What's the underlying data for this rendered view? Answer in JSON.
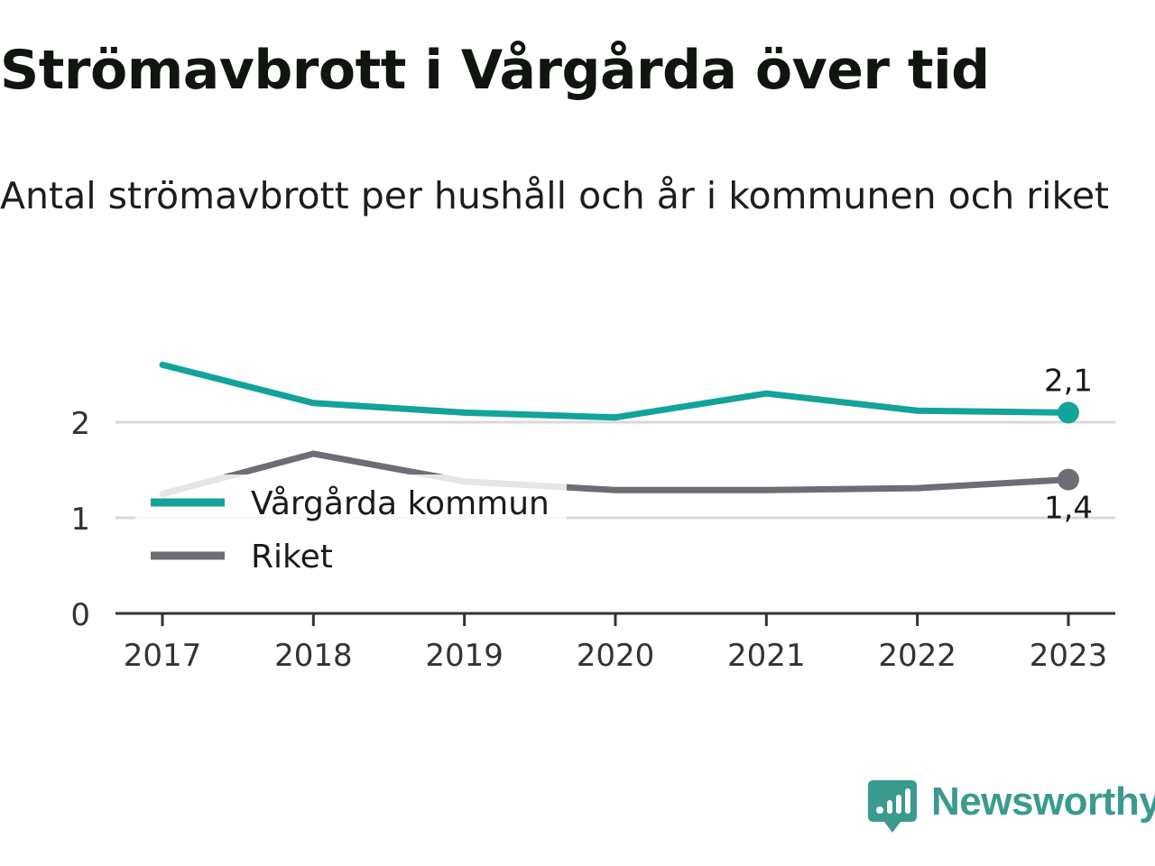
{
  "title": "Strömavbrott i Vårgårda över tid",
  "subtitle": "Antal strömavbrott per hushåll och år i kommunen och riket",
  "brand": {
    "name": "Newsworthy",
    "icon": "newsworthy-logo-icon",
    "color": "#3a9a8e"
  },
  "chart_data": {
    "type": "line",
    "title": "Strömavbrott i Vårgårda över tid",
    "subtitle": "Antal strömavbrott per hushåll och år i kommunen och riket",
    "x": [
      "2017",
      "2018",
      "2019",
      "2020",
      "2021",
      "2022",
      "2023"
    ],
    "yticks": [
      "0",
      "1",
      "2"
    ],
    "ylim": [
      0,
      2.6
    ],
    "grid": true,
    "legend": "left-middle",
    "series": [
      {
        "name": "Vårgårda kommun",
        "color": "#12a39a",
        "values": [
          2.6,
          2.2,
          2.1,
          2.05,
          2.3,
          2.12,
          2.1
        ],
        "end_label": "2,1"
      },
      {
        "name": "Riket",
        "color": "#6e6d76",
        "values": [
          1.25,
          1.67,
          1.38,
          1.29,
          1.29,
          1.31,
          1.4
        ],
        "end_label": "1,4"
      }
    ]
  }
}
